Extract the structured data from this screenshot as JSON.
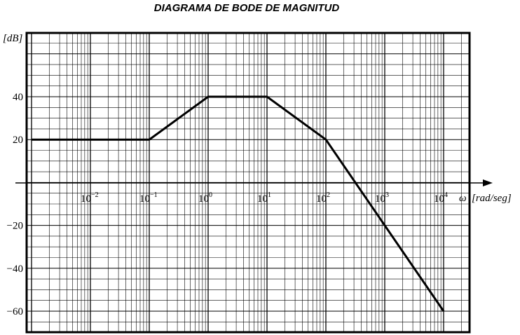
{
  "chart_data": {
    "type": "line",
    "title": "DIAGRAMA DE BODE DE MAGNITUD",
    "ylabel": "[dB]",
    "xlabel_symbol": "ω",
    "xlabel_unit": "[rad/seg]",
    "x_scale": "log",
    "grid": true,
    "xlim": [
      0.001,
      20000
    ],
    "ylim": [
      -65,
      68
    ],
    "x_ticks": [
      {
        "base": "10",
        "exp": "−2",
        "value": 0.01
      },
      {
        "base": "10",
        "exp": "−1",
        "value": 0.1
      },
      {
        "base": "10",
        "exp": "0",
        "value": 1
      },
      {
        "base": "10",
        "exp": "1",
        "value": 10
      },
      {
        "base": "10",
        "exp": "2",
        "value": 100
      },
      {
        "base": "10",
        "exp": "3",
        "value": 1000
      },
      {
        "base": "10",
        "exp": "4",
        "value": 10000
      }
    ],
    "y_ticks": [
      {
        "label": "40",
        "value": 40
      },
      {
        "label": "20",
        "value": 20
      },
      {
        "label": "−20",
        "value": -20
      },
      {
        "label": "−40",
        "value": -40
      },
      {
        "label": "−60",
        "value": -60
      }
    ],
    "series": [
      {
        "x": [
          0.001,
          0.1,
          1,
          10,
          100,
          10000
        ],
        "y": [
          20,
          20,
          40,
          40,
          20,
          -60
        ]
      }
    ]
  }
}
